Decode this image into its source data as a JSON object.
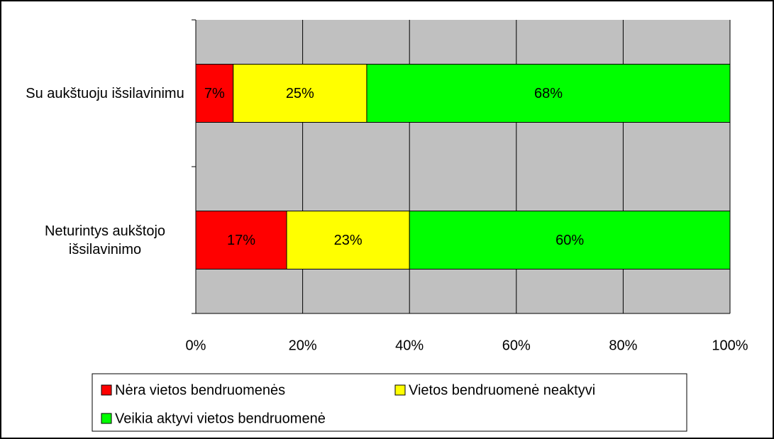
{
  "chart_data": {
    "type": "stacked_barh",
    "categories": [
      "Su aukštuoju išsilavinimu",
      "Neturintys aukštojo išsilavinimo"
    ],
    "series": [
      {
        "name": "Nėra vietos bendruomenės",
        "color": "#ff0000",
        "values": [
          7,
          17
        ],
        "value_labels": [
          "7%",
          "17%"
        ]
      },
      {
        "name": "Vietos bendruomenė neaktyvi",
        "color": "#ffff00",
        "values": [
          25,
          23
        ],
        "value_labels": [
          "25%",
          "23%"
        ]
      },
      {
        "name": "Veikia aktyvi vietos bendruomenė",
        "color": "#00ff00",
        "values": [
          68,
          60
        ],
        "value_labels": [
          "68%",
          "60%"
        ]
      }
    ],
    "xlim": [
      0,
      100
    ],
    "xticks": [
      {
        "value": 0,
        "label": "0%"
      },
      {
        "value": 20,
        "label": "20%"
      },
      {
        "value": 40,
        "label": "40%"
      },
      {
        "value": 60,
        "label": "60%"
      },
      {
        "value": 80,
        "label": "80%"
      },
      {
        "value": 100,
        "label": "100%"
      }
    ],
    "grid": true,
    "plot_background": "#c0c0c0",
    "legend": "bottom"
  }
}
